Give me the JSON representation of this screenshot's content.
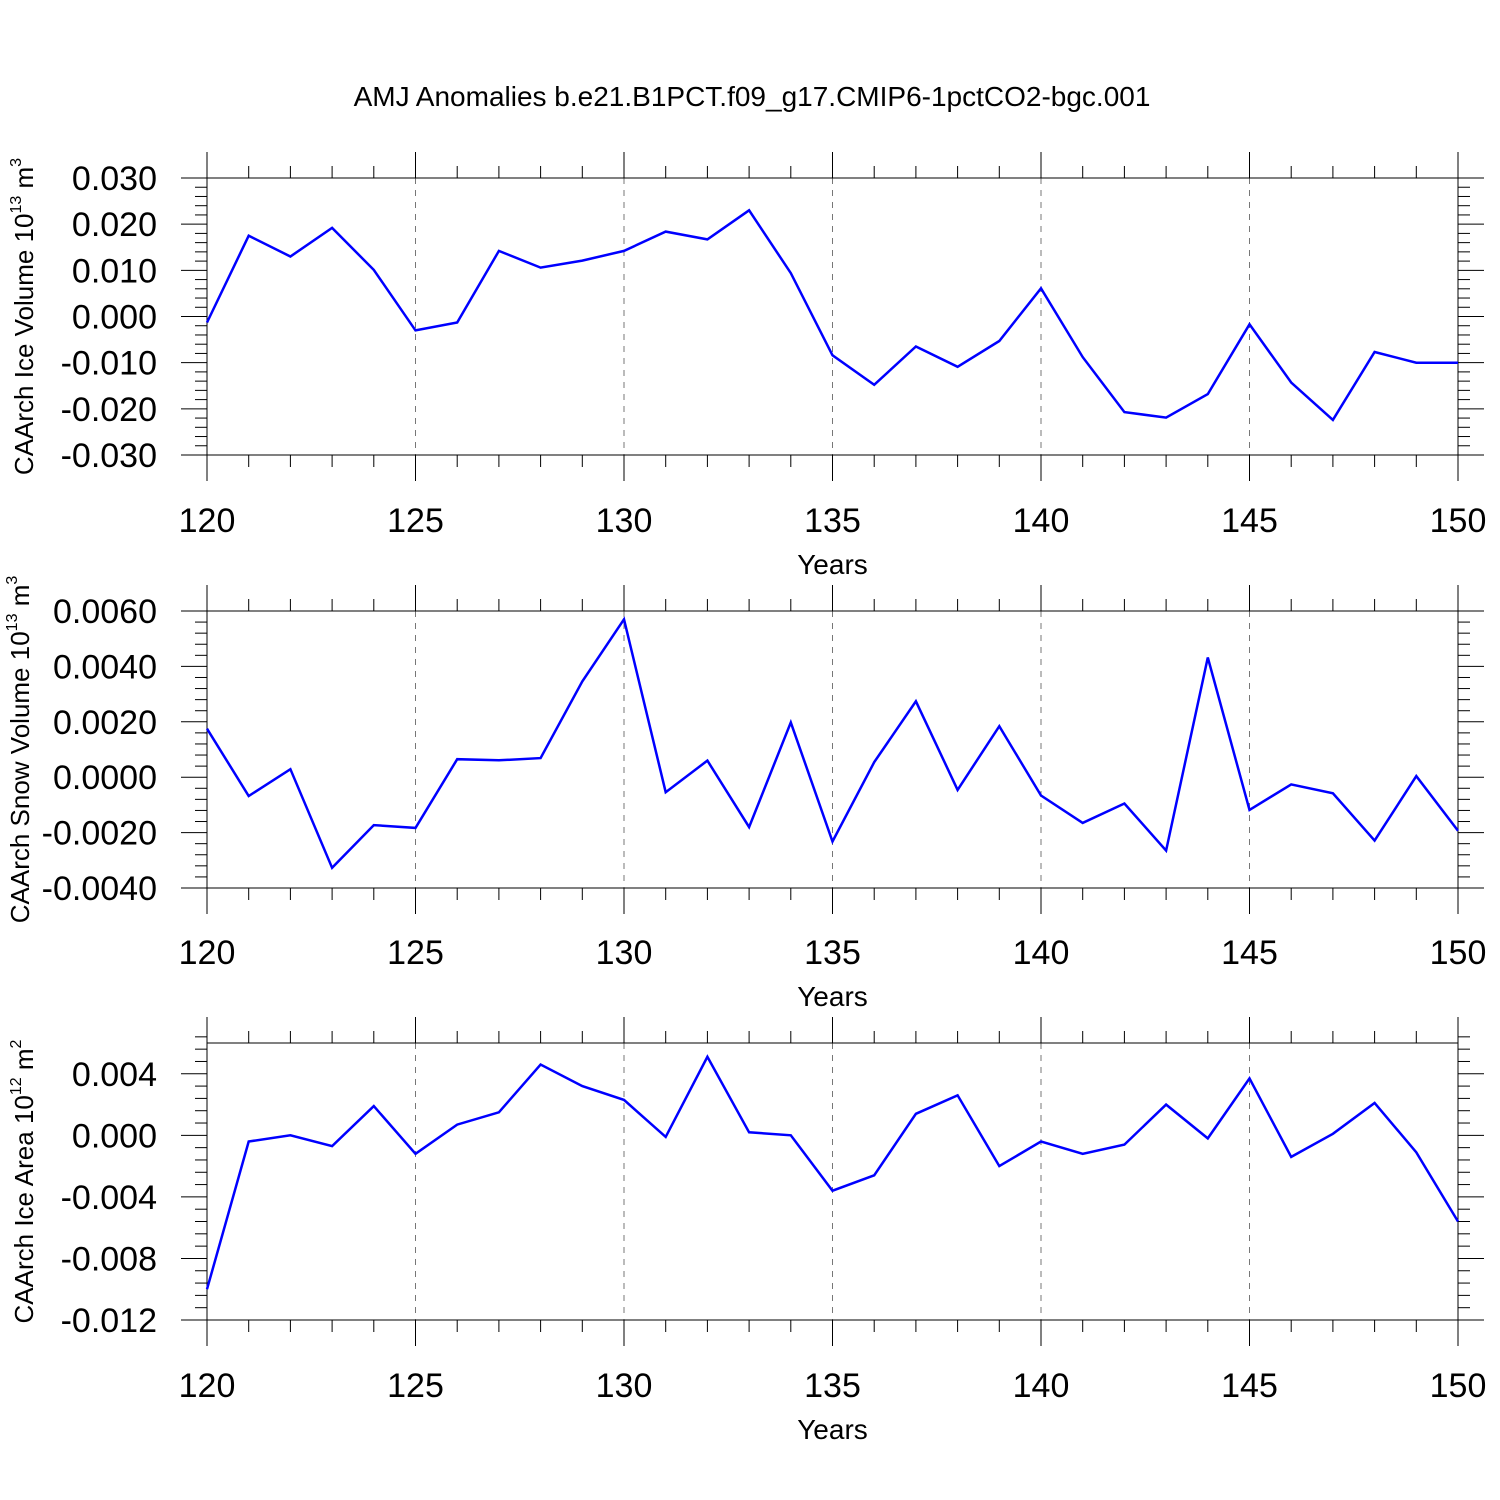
{
  "figure": {
    "title": "AMJ Anomalies b.e21.B1PCT.f09_g17.CMIP6-1pctCO2-bgc.001"
  },
  "chart_data": [
    {
      "type": "line",
      "xlabel": "Years",
      "ylabel_parts": [
        "CAArch Ice Volume 10",
        "13",
        " m",
        "3"
      ],
      "xlim": [
        120,
        150
      ],
      "ylim": [
        -0.03,
        0.03
      ],
      "xticks": [
        "120",
        "125",
        "130",
        "135",
        "140",
        "145",
        "150"
      ],
      "yticks": [
        "-0.030",
        "-0.020",
        "-0.010",
        "0.000",
        "0.010",
        "0.020",
        "0.030"
      ],
      "x": [
        120,
        121,
        122,
        123,
        124,
        125,
        126,
        127,
        128,
        129,
        130,
        131,
        132,
        133,
        134,
        135,
        136,
        137,
        138,
        139,
        140,
        141,
        142,
        143,
        144,
        145,
        146,
        147,
        148,
        149,
        150
      ],
      "series": [
        {
          "color": "#0000ff",
          "values": [
            -0.0013,
            0.0175,
            0.013,
            0.0192,
            0.0101,
            -0.003,
            -0.0013,
            0.0142,
            0.0106,
            0.0121,
            0.0142,
            0.0184,
            0.0167,
            0.023,
            0.0094,
            -0.0084,
            -0.0148,
            -0.0065,
            -0.0109,
            -0.0053,
            0.0061,
            -0.0088,
            -0.0207,
            -0.0219,
            -0.0168,
            -0.0017,
            -0.0143,
            -0.0224,
            -0.0077,
            -0.01,
            -0.01
          ]
        }
      ],
      "grid": "vertical dashed at major x ticks",
      "legend": "none"
    },
    {
      "type": "line",
      "xlabel": "Years",
      "ylabel_parts": [
        "CAArch Snow Volume 10",
        "13",
        " m",
        "3"
      ],
      "xlim": [
        120,
        150
      ],
      "ylim": [
        -0.004,
        0.006
      ],
      "xticks": [
        "120",
        "125",
        "130",
        "135",
        "140",
        "145",
        "150"
      ],
      "yticks": [
        "-0.0040",
        "-0.0020",
        "0.0000",
        "0.0020",
        "0.0040",
        "0.0060"
      ],
      "x": [
        120,
        121,
        122,
        123,
        124,
        125,
        126,
        127,
        128,
        129,
        130,
        131,
        132,
        133,
        134,
        135,
        136,
        137,
        138,
        139,
        140,
        141,
        142,
        143,
        144,
        145,
        146,
        147,
        148,
        149,
        150
      ],
      "series": [
        {
          "color": "#0000ff",
          "values": [
            0.00175,
            -0.00068,
            0.00029,
            -0.00327,
            -0.00173,
            -0.00183,
            0.00065,
            0.00061,
            0.00069,
            0.00346,
            0.0057,
            -0.00054,
            0.0006,
            -0.0018,
            0.00198,
            -0.00232,
            0.00054,
            0.00274,
            -0.00046,
            0.00184,
            -0.00066,
            -0.00165,
            -0.00095,
            -0.00265,
            0.00432,
            -0.00118,
            -0.00026,
            -0.00058,
            -0.00229,
            4e-05,
            -0.00193
          ]
        }
      ],
      "grid": "vertical dashed at major x ticks",
      "legend": "none"
    },
    {
      "type": "line",
      "xlabel": "Years",
      "ylabel_parts": [
        "CAArch Ice Area 10",
        "12",
        " m",
        "2"
      ],
      "xlim": [
        120,
        150
      ],
      "ylim": [
        -0.012,
        0.006
      ],
      "xticks": [
        "120",
        "125",
        "130",
        "135",
        "140",
        "145",
        "150"
      ],
      "yticks": [
        "-0.012",
        "-0.008",
        "-0.004",
        "0.000",
        "0.004"
      ],
      "x": [
        120,
        121,
        122,
        123,
        124,
        125,
        126,
        127,
        128,
        129,
        130,
        131,
        132,
        133,
        134,
        135,
        136,
        137,
        138,
        139,
        140,
        141,
        142,
        143,
        144,
        145,
        146,
        147,
        148,
        149,
        150
      ],
      "series": [
        {
          "color": "#0000ff",
          "values": [
            -0.01,
            -0.0004,
            0.0,
            -0.0007,
            0.0019,
            -0.0012,
            0.0007,
            0.0015,
            0.0046,
            0.0032,
            0.0023,
            -0.0001,
            0.0051,
            0.0002,
            0.0,
            -0.0036,
            -0.0026,
            0.0014,
            0.0026,
            -0.002,
            -0.0004,
            -0.0012,
            -0.0006,
            0.002,
            -0.0002,
            0.0037,
            -0.0014,
            0.0001,
            0.0021,
            -0.0011,
            -0.0056
          ]
        }
      ],
      "grid": "vertical dashed at major x ticks",
      "legend": "none"
    }
  ]
}
